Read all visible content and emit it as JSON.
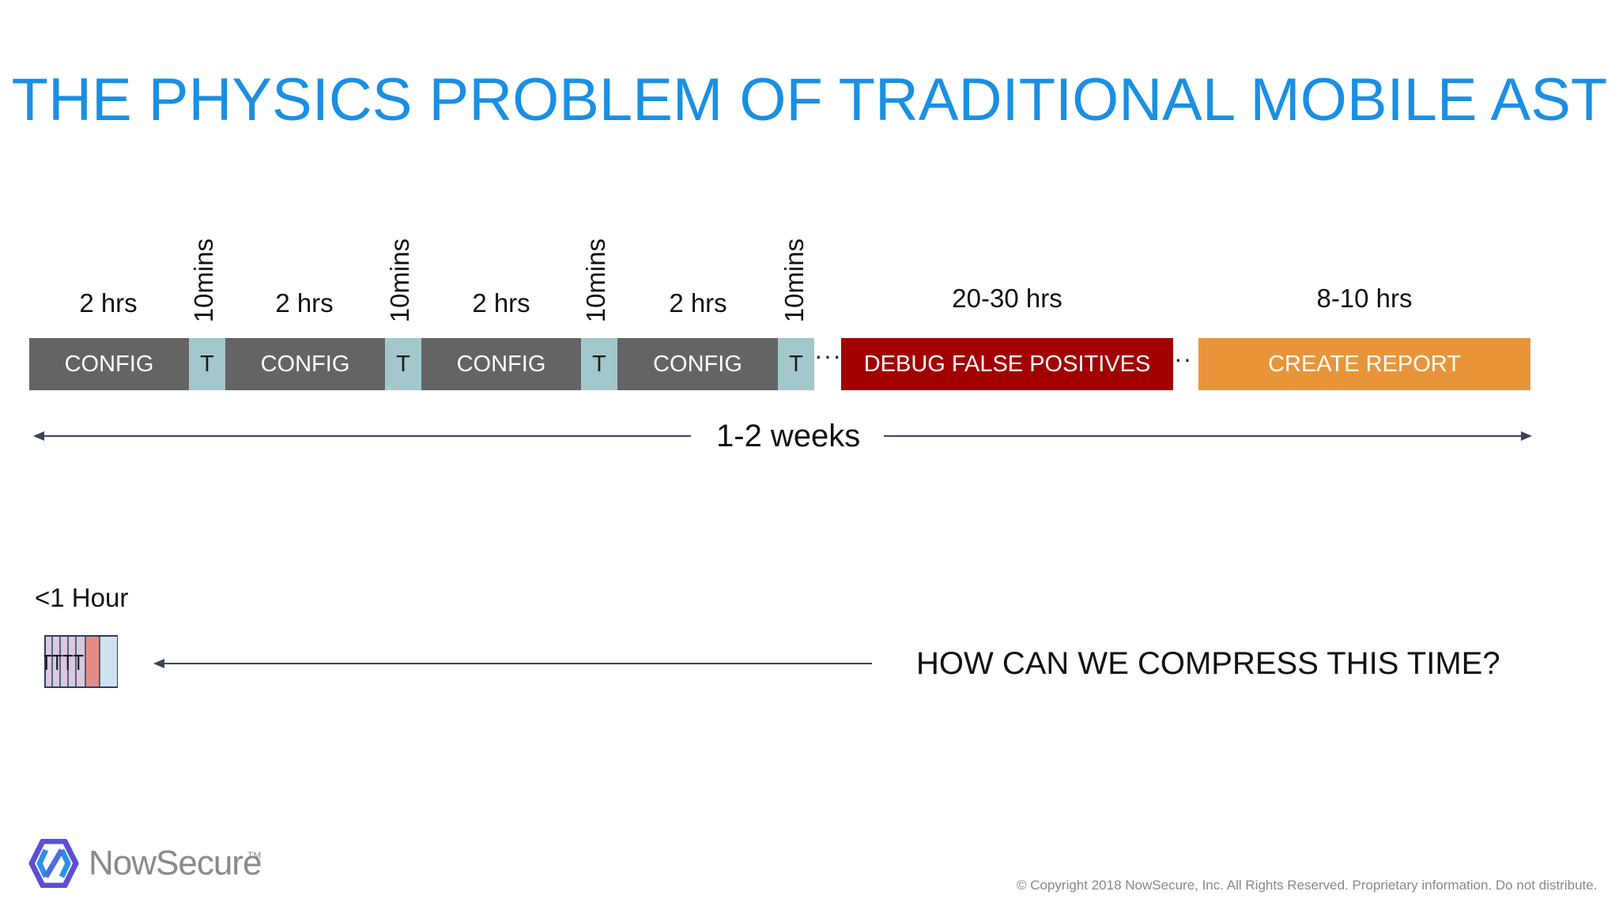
{
  "title": "THE PHYSICS PROBLEM OF TRADITIONAL MOBILE AST",
  "timeline": {
    "config_label": "CONFIG",
    "test_label": "T",
    "config_duration": "2 hrs",
    "test_duration": "10mins",
    "debug_label": "DEBUG FALSE POSITIVES",
    "debug_duration": "20-30 hrs",
    "report_label": "CREATE REPORT",
    "report_duration": "8-10 hrs",
    "span_label": "1-2 weeks"
  },
  "compressed": {
    "label": "<1 Hour",
    "mini_test_label": "TTTT",
    "question": "HOW CAN WE COMPRESS THIS TIME?"
  },
  "footer": {
    "brand": "NowSecure",
    "trademark": "TM",
    "copyright": "© Copyright 2018 NowSecure, Inc. All Rights Reserved. Proprietary information. Do not distribute."
  },
  "colors": {
    "title": "#1a8fe3",
    "config": "#646464",
    "test": "#a3c8cb",
    "debug": "#a20000",
    "report": "#e8953a",
    "arrow": "#3a4656"
  }
}
